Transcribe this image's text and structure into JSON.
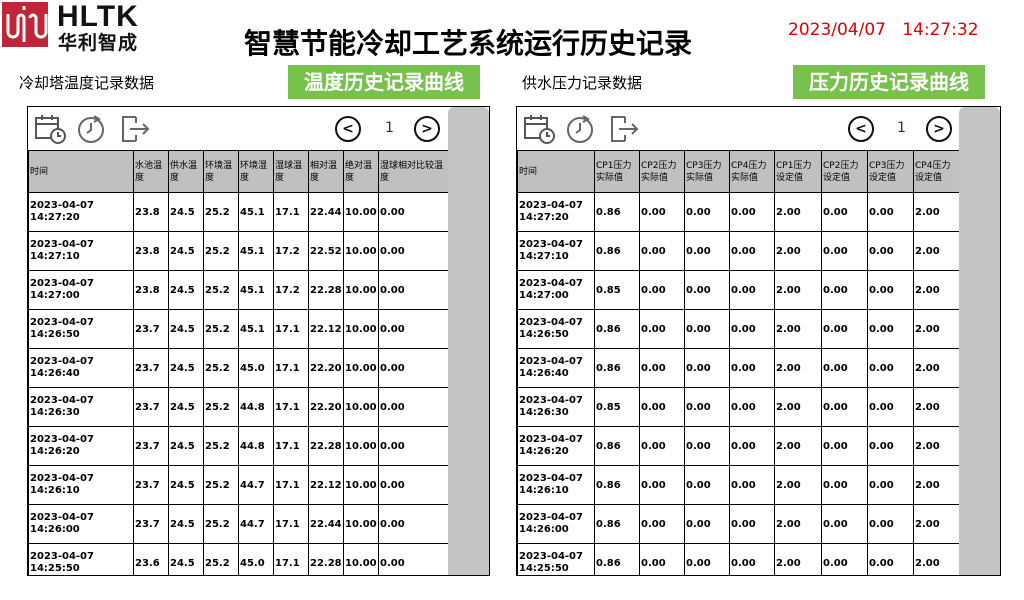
{
  "header": {
    "brand": "HLTK",
    "brand_cn": "华利智成",
    "title": "智慧节能冷却工艺系统运行历史记录",
    "datetime": "2023/04/07   14:27:32"
  },
  "colors": {
    "accent_green": "#76c24d",
    "clock_red": "#e00000",
    "header_gray": "#c0c0c0"
  },
  "temperature": {
    "section_label": "冷却塔温度记录数据",
    "curve_button": "温度历史记录曲线",
    "page": "1",
    "toolbar_icons": [
      "calendar-clock-icon",
      "clock-refresh-icon",
      "export-icon"
    ],
    "columns": [
      "时间",
      "水池温度",
      "供水温度",
      "环境温度",
      "环境湿度",
      "湿球温度",
      "相对温度",
      "绝对温度",
      "湿球相对比较温度"
    ],
    "rows": [
      [
        "2023-04-07 14:27:20",
        "23.8",
        "24.5",
        "25.2",
        "45.1",
        "17.1",
        "22.44",
        "10.00",
        "0.00"
      ],
      [
        "2023-04-07 14:27:10",
        "23.8",
        "24.5",
        "25.2",
        "45.1",
        "17.2",
        "22.52",
        "10.00",
        "0.00"
      ],
      [
        "2023-04-07 14:27:00",
        "23.8",
        "24.5",
        "25.2",
        "45.1",
        "17.2",
        "22.28",
        "10.00",
        "0.00"
      ],
      [
        "2023-04-07 14:26:50",
        "23.7",
        "24.5",
        "25.2",
        "45.1",
        "17.1",
        "22.12",
        "10.00",
        "0.00"
      ],
      [
        "2023-04-07 14:26:40",
        "23.7",
        "24.5",
        "25.2",
        "45.0",
        "17.1",
        "22.20",
        "10.00",
        "0.00"
      ],
      [
        "2023-04-07 14:26:30",
        "23.7",
        "24.5",
        "25.2",
        "44.8",
        "17.1",
        "22.20",
        "10.00",
        "0.00"
      ],
      [
        "2023-04-07 14:26:20",
        "23.7",
        "24.5",
        "25.2",
        "44.8",
        "17.1",
        "22.28",
        "10.00",
        "0.00"
      ],
      [
        "2023-04-07 14:26:10",
        "23.7",
        "24.5",
        "25.2",
        "44.7",
        "17.1",
        "22.12",
        "10.00",
        "0.00"
      ],
      [
        "2023-04-07 14:26:00",
        "23.7",
        "24.5",
        "25.2",
        "44.7",
        "17.1",
        "22.44",
        "10.00",
        "0.00"
      ],
      [
        "2023-04-07 14:25:50",
        "23.6",
        "24.5",
        "25.2",
        "45.0",
        "17.1",
        "22.28",
        "10.00",
        "0.00"
      ]
    ]
  },
  "pressure": {
    "section_label": "供水压力记录数据",
    "curve_button": "压力历史记录曲线",
    "page": "1",
    "columns": [
      "时间",
      "CP1压力实际值",
      "CP2压力实际值",
      "CP3压力实际值",
      "CP4压力实际值",
      "CP1压力设定值",
      "CP2压力设定值",
      "CP3压力设定值",
      "CP4压力设定值"
    ],
    "rows": [
      [
        "2023-04-07 14:27:20",
        "0.86",
        "0.00",
        "0.00",
        "0.00",
        "2.00",
        "0.00",
        "0.00",
        "2.00"
      ],
      [
        "2023-04-07 14:27:10",
        "0.86",
        "0.00",
        "0.00",
        "0.00",
        "2.00",
        "0.00",
        "0.00",
        "2.00"
      ],
      [
        "2023-04-07 14:27:00",
        "0.85",
        "0.00",
        "0.00",
        "0.00",
        "2.00",
        "0.00",
        "0.00",
        "2.00"
      ],
      [
        "2023-04-07 14:26:50",
        "0.86",
        "0.00",
        "0.00",
        "0.00",
        "2.00",
        "0.00",
        "0.00",
        "2.00"
      ],
      [
        "2023-04-07 14:26:40",
        "0.86",
        "0.00",
        "0.00",
        "0.00",
        "2.00",
        "0.00",
        "0.00",
        "2.00"
      ],
      [
        "2023-04-07 14:26:30",
        "0.85",
        "0.00",
        "0.00",
        "0.00",
        "2.00",
        "0.00",
        "0.00",
        "2.00"
      ],
      [
        "2023-04-07 14:26:20",
        "0.86",
        "0.00",
        "0.00",
        "0.00",
        "2.00",
        "0.00",
        "0.00",
        "2.00"
      ],
      [
        "2023-04-07 14:26:10",
        "0.86",
        "0.00",
        "0.00",
        "0.00",
        "2.00",
        "0.00",
        "0.00",
        "2.00"
      ],
      [
        "2023-04-07 14:26:00",
        "0.86",
        "0.00",
        "0.00",
        "0.00",
        "2.00",
        "0.00",
        "0.00",
        "2.00"
      ],
      [
        "2023-04-07 14:25:50",
        "0.86",
        "0.00",
        "0.00",
        "0.00",
        "2.00",
        "0.00",
        "0.00",
        "2.00"
      ]
    ]
  }
}
